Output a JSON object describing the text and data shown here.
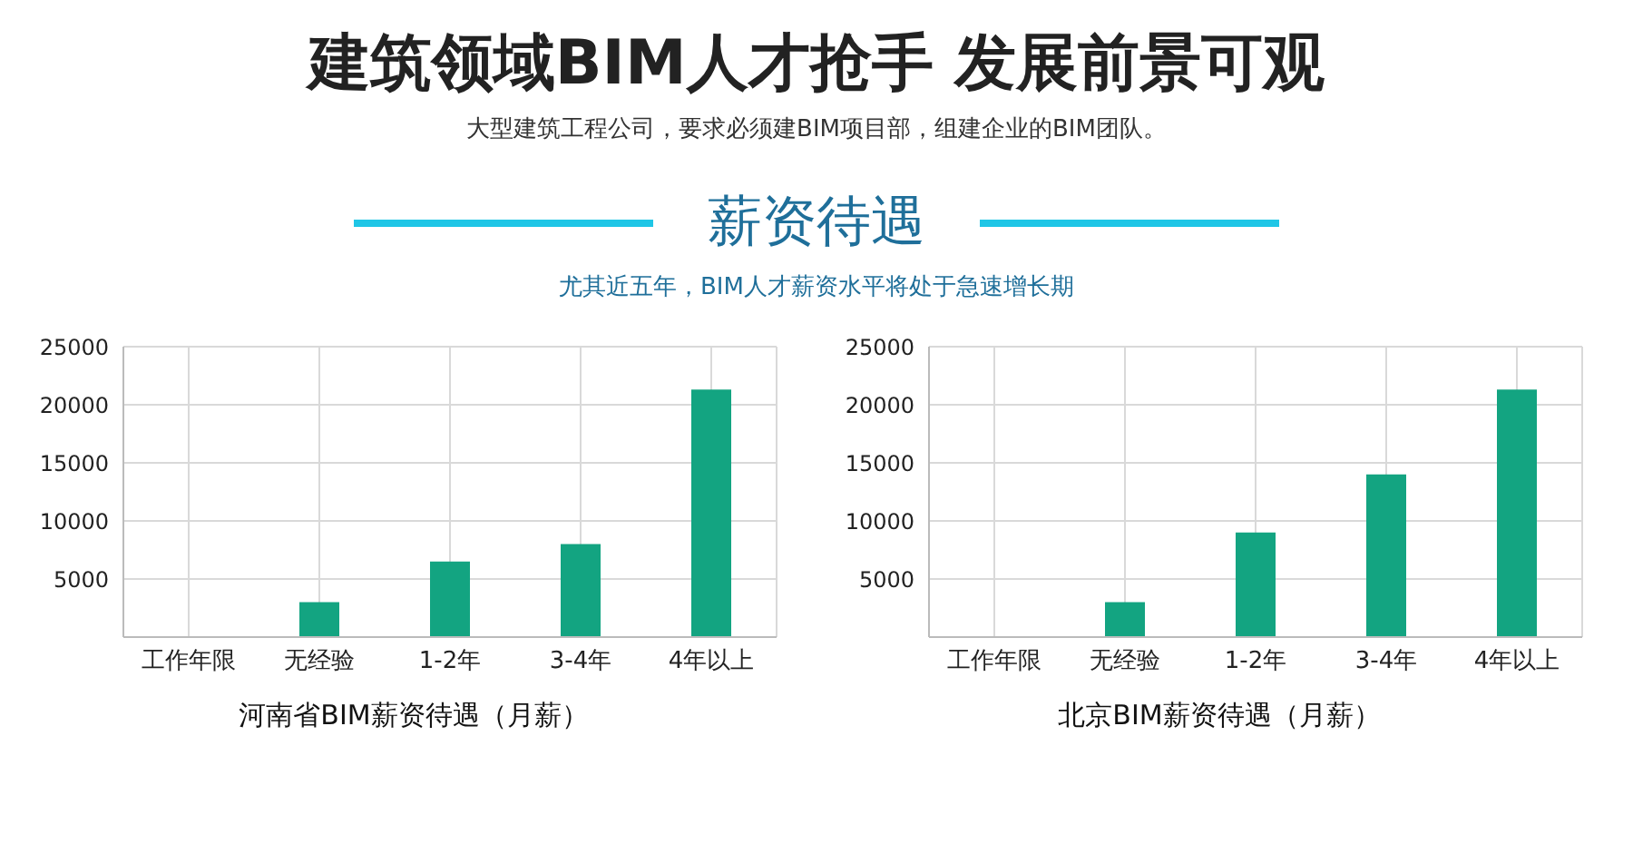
{
  "chart_data": [
    {
      "type": "bar",
      "title": "河南省BIM薪资待遇（月薪）",
      "annotations": [
        "建筑领域BIM人才抢手 发展前景可观",
        "大型建筑工程公司，要求必须建BIM项目部，组建企业的BIM团队。",
        "薪资待遇",
        "尤其近五年，BIM人才薪资水平将处于急速增长期"
      ],
      "categories": [
        "工作年限",
        "无经验",
        "1-2年",
        "3-4年",
        "4年以上"
      ],
      "values": [
        null,
        3000,
        6500,
        8000,
        21300
      ],
      "color": "#13a481",
      "ylim": [
        0,
        25000
      ],
      "yticks": [
        {
          "value": 0,
          "label": null
        },
        5000,
        10000,
        15000,
        20000,
        25000
      ],
      "grid": true
    },
    {
      "type": "bar",
      "title": "北京BIM薪资待遇（月薪）",
      "categories": [
        "工作年限",
        "无经验",
        "1-2年",
        "3-4年",
        "4年以上"
      ],
      "values": [
        null,
        3000,
        9000,
        14000,
        21300
      ],
      "color": "#13a481",
      "ylim": [
        0,
        25000
      ],
      "yticks": [
        {
          "value": 0,
          "label": null
        },
        5000,
        10000,
        15000,
        20000,
        25000
      ],
      "grid": true
    }
  ]
}
